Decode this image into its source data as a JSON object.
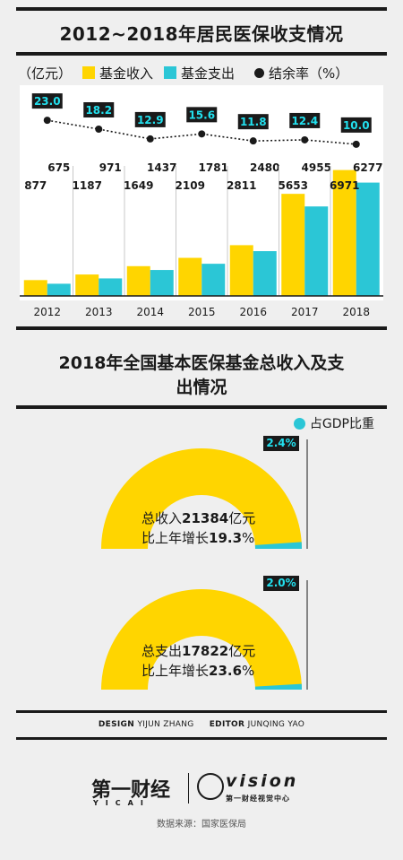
{
  "chart_data": [
    {
      "type": "bar",
      "title": "2012~2018年居民医保收支情况",
      "unit_label": "（亿元）",
      "categories": [
        "2012",
        "2013",
        "2014",
        "2015",
        "2016",
        "2017",
        "2018"
      ],
      "series": [
        {
          "name": "基金收入",
          "color": "#ffd500",
          "values": [
            877,
            1187,
            1649,
            2109,
            2811,
            5653,
            6971
          ]
        },
        {
          "name": "基金支出",
          "color": "#2bc6d6",
          "values": [
            675,
            971,
            1437,
            1781,
            2480,
            4955,
            6277
          ]
        }
      ],
      "line_series": {
        "name": "结余率（%）",
        "values": [
          23.0,
          18.2,
          12.9,
          15.6,
          11.8,
          12.4,
          10.0
        ]
      },
      "ylim": [
        0,
        7500
      ],
      "legend_placement": "top"
    },
    {
      "type": "pie",
      "title": "2018年全国基本医保基金总收入及支出情况",
      "legend": "占GDP比重",
      "gauges": [
        {
          "line1_pre": "总收入",
          "line1_num": "21384",
          "line1_post": "亿元",
          "line2_pre": "比上年增长",
          "line2_num": "19.3",
          "line2_post": "%",
          "gdp_share_label": "2.4%",
          "gdp_share": 2.4
        },
        {
          "line1_pre": "总支出",
          "line1_num": "17822",
          "line1_post": "亿元",
          "line2_pre": "比上年增长",
          "line2_num": "23.6",
          "line2_post": "%",
          "gdp_share_label": "2.0%",
          "gdp_share": 2.0
        }
      ]
    }
  ],
  "colors": {
    "income": "#ffd500",
    "expense": "#2bc6d6",
    "dark": "#1a1a1a",
    "badge_text": "#22e0ee"
  },
  "labels": {
    "rate_badges": [
      "23.0",
      "18.2",
      "12.9",
      "15.6",
      "11.8",
      "12.4",
      "10.0"
    ],
    "income_labels": [
      "877",
      "1187",
      "1649",
      "2109",
      "2811",
      "5653",
      "6971"
    ],
    "expense_labels": [
      "675",
      "971",
      "1437",
      "1781",
      "2480",
      "4955",
      "6277"
    ]
  },
  "credits": {
    "design_key": "DESIGN",
    "design_name": "YIJUN ZHANG",
    "editor_key": "EDITOR",
    "editor_name": "JUNQING YAO"
  },
  "logo": {
    "left": "第一财经",
    "left_sub": "YICAI",
    "right": "vision",
    "right_sub": "第一财经视觉中心"
  },
  "source": "数据来源：国家医保局"
}
